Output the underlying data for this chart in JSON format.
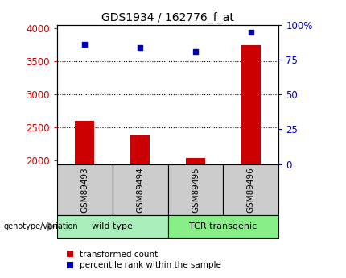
{
  "title": "GDS1934 / 162776_f_at",
  "samples": [
    "GSM89493",
    "GSM89494",
    "GSM89495",
    "GSM89496"
  ],
  "transformed_counts": [
    2600,
    2380,
    2045,
    3750
  ],
  "percentile_ranks": [
    86,
    84,
    81,
    95
  ],
  "ylim_left": [
    1950,
    4050
  ],
  "ylim_right": [
    0,
    100
  ],
  "yticks_left": [
    2000,
    2500,
    3000,
    3500,
    4000
  ],
  "yticks_right": [
    0,
    25,
    50,
    75,
    100
  ],
  "bar_color": "#cc0000",
  "dot_color": "#0000bb",
  "left_tick_color": "#cc0000",
  "right_tick_color": "#0000bb",
  "sample_bg_color": "#cccccc",
  "wild_type_color": "#aaeebb",
  "tcr_color": "#88ee88",
  "legend_red_label": "transformed count",
  "legend_blue_label": "percentile rank within the sample",
  "genotype_label": "genotype/variation"
}
